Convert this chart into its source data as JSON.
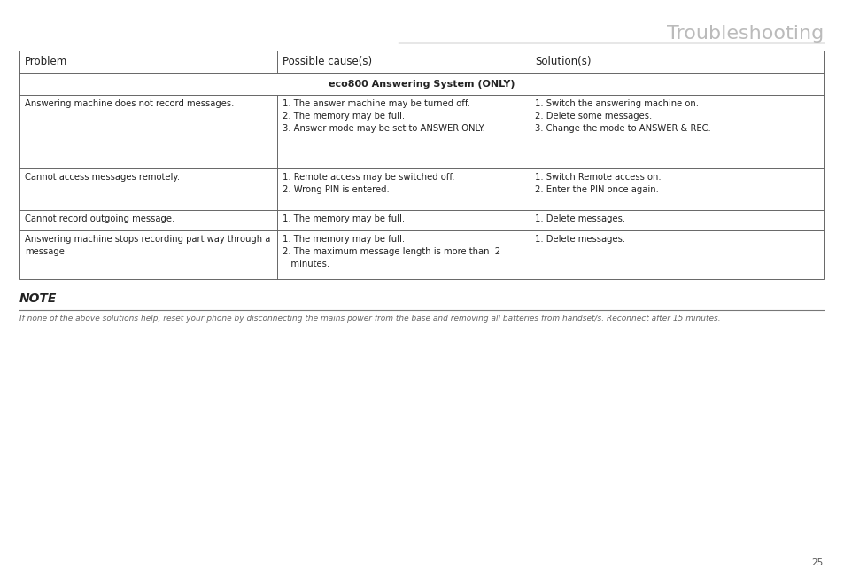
{
  "title": "Troubleshooting",
  "title_color": "#bbbbbb",
  "title_fontsize": 16,
  "page_number": "25",
  "header_line_color": "#888888",
  "table_border_color": "#666666",
  "col_headers": [
    "Problem",
    "Possible cause(s)",
    "Solution(s)"
  ],
  "section_header": "eco800 Answering System (ONLY)",
  "bg_color": "#ffffff",
  "text_color": "#222222",
  "note_color": "#666666",
  "cell_fontsize": 7.2,
  "header_fontsize": 8.5,
  "note_title_fontsize": 10,
  "note_text_fontsize": 6.5,
  "note_title": "NOTE",
  "note_text": "If none of the above solutions help, reset your phone by disconnecting the mains power from the base and removing all batteries from handset/s. Reconnect after 15 minutes.",
  "rows": [
    {
      "problem": "Answering machine does not record messages.",
      "causes": "1. The answer machine may be turned off.\n2. The memory may be full.\n3. Answer mode may be set to ANSWER ONLY.",
      "solutions": "1. Switch the answering machine on.\n2. Delete some messages.\n3. Change the mode to ANSWER & REC."
    },
    {
      "problem": "Cannot access messages remotely.",
      "causes": "1. Remote access may be switched off.\n2. Wrong PIN is entered.",
      "solutions": "1. Switch Remote access on.\n2. Enter the PIN once again."
    },
    {
      "problem": "Cannot record outgoing message.",
      "causes": "1. The memory may be full.",
      "solutions": "1. Delete messages."
    },
    {
      "problem": "Answering machine stops recording part way through a\nmessage.",
      "causes": "1. The memory may be full.\n2. The maximum message length is more than  2\n   minutes.",
      "solutions": "1. Delete messages."
    }
  ]
}
